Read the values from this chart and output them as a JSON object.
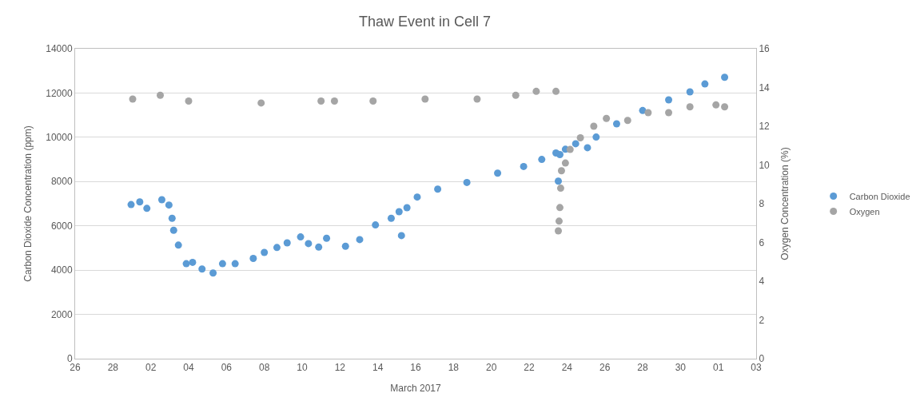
{
  "chart_data": {
    "type": "scatter",
    "title": "Thaw Event in Cell 7",
    "xlabel": "March 2017",
    "ylabel": "Carbon Dioxide Concentration (ppm)",
    "y2label": "Oxygen Concentration (%)",
    "xlim": [
      "2017-02-26",
      "2017-04-03"
    ],
    "xticks": [
      {
        "value": "2017-02-26",
        "label": "26"
      },
      {
        "value": "2017-02-28",
        "label": "28"
      },
      {
        "value": "2017-03-02",
        "label": "02"
      },
      {
        "value": "2017-03-04",
        "label": "04"
      },
      {
        "value": "2017-03-06",
        "label": "06"
      },
      {
        "value": "2017-03-08",
        "label": "08"
      },
      {
        "value": "2017-03-10",
        "label": "10"
      },
      {
        "value": "2017-03-12",
        "label": "12"
      },
      {
        "value": "2017-03-14",
        "label": "14"
      },
      {
        "value": "2017-03-16",
        "label": "16"
      },
      {
        "value": "2017-03-18",
        "label": "18"
      },
      {
        "value": "2017-03-20",
        "label": "20"
      },
      {
        "value": "2017-03-22",
        "label": "22"
      },
      {
        "value": "2017-03-24",
        "label": "24"
      },
      {
        "value": "2017-03-26",
        "label": "26"
      },
      {
        "value": "2017-03-28",
        "label": "28"
      },
      {
        "value": "2017-03-30",
        "label": "30"
      },
      {
        "value": "2017-04-01",
        "label": "01"
      },
      {
        "value": "2017-04-03",
        "label": "03"
      }
    ],
    "ylim": [
      0,
      14000
    ],
    "yticks": [
      0,
      2000,
      4000,
      6000,
      8000,
      10000,
      12000,
      14000
    ],
    "y2lim": [
      0,
      16
    ],
    "y2ticks": [
      0,
      2,
      4,
      6,
      8,
      10,
      12,
      14,
      16
    ],
    "grid": "y",
    "legend": "right",
    "marker": "circle",
    "series": [
      {
        "name": "Carbon Dioxide",
        "color": "#5b9bd5",
        "x": [
          "2017-02-28T23:00",
          "2017-03-01T10:00",
          "2017-03-01T19:00",
          "2017-03-02T14:00",
          "2017-03-02T23:00",
          "2017-03-03T03:00",
          "2017-03-03T05:00",
          "2017-03-03T11:00",
          "2017-03-03T21:00",
          "2017-03-04T05:00",
          "2017-03-04T17:00",
          "2017-03-05T07:00",
          "2017-03-05T19:00",
          "2017-03-06T11:00",
          "2017-03-07T10:00",
          "2017-03-08T00:00",
          "2017-03-08T16:00",
          "2017-03-09T05:00",
          "2017-03-09T22:00",
          "2017-03-10T08:00",
          "2017-03-10T21:00",
          "2017-03-11T07:00",
          "2017-03-12T07:00",
          "2017-03-13T01:00",
          "2017-03-13T21:00",
          "2017-03-14T17:00",
          "2017-03-15T03:00",
          "2017-03-15T06:00",
          "2017-03-15T13:00",
          "2017-03-16T02:00",
          "2017-03-17T04:00",
          "2017-03-18T17:00",
          "2017-03-20T08:00",
          "2017-03-21T17:00",
          "2017-03-22T16:00",
          "2017-03-23T10:00",
          "2017-03-23T13:00",
          "2017-03-23T15:00",
          "2017-03-23T22:00",
          "2017-03-24T11:00",
          "2017-03-25T02:00",
          "2017-03-25T13:00",
          "2017-03-26T15:00",
          "2017-03-28T00:00",
          "2017-03-29T09:00",
          "2017-03-30T12:00",
          "2017-03-31T07:00",
          "2017-04-01T08:00"
        ],
        "values": [
          6960,
          7080,
          6790,
          7180,
          6940,
          6340,
          5800,
          5130,
          4290,
          4350,
          4050,
          3870,
          4290,
          4290,
          4530,
          4800,
          5020,
          5230,
          5500,
          5200,
          5040,
          5440,
          5080,
          5380,
          6040,
          6340,
          6640,
          5560,
          6820,
          7300,
          7660,
          7960,
          8380,
          8680,
          9000,
          9290,
          8020,
          9220,
          9460,
          9710,
          9530,
          10010,
          10610,
          11210,
          11690,
          12050,
          12410,
          12710
        ]
      },
      {
        "name": "Oxygen",
        "color": "#a5a5a5",
        "axis": "y2",
        "x": [
          "2017-03-01T01:00",
          "2017-03-02T12:00",
          "2017-03-04T00:00",
          "2017-03-07T20:00",
          "2017-03-11T00:00",
          "2017-03-11T17:00",
          "2017-03-13T18:00",
          "2017-03-16T12:00",
          "2017-03-19T06:00",
          "2017-03-21T07:00",
          "2017-03-22T09:00",
          "2017-03-23T10:00",
          "2017-03-23T13:00",
          "2017-03-23T14:00",
          "2017-03-23T15:00",
          "2017-03-23T16:00",
          "2017-03-23T17:00",
          "2017-03-23T22:00",
          "2017-03-24T04:00",
          "2017-03-24T17:00",
          "2017-03-25T10:00",
          "2017-03-26T02:00",
          "2017-03-27T05:00",
          "2017-03-28T07:00",
          "2017-03-29T09:00",
          "2017-03-30T12:00",
          "2017-03-31T21:00",
          "2017-04-01T08:00"
        ],
        "values": [
          13.4,
          13.6,
          13.3,
          13.2,
          13.3,
          13.3,
          13.3,
          13.4,
          13.4,
          13.6,
          13.8,
          13.8,
          6.6,
          7.1,
          7.8,
          8.8,
          9.7,
          10.1,
          10.8,
          11.4,
          12.0,
          12.4,
          12.3,
          12.7,
          12.7,
          13.0,
          13.1,
          13.0
        ]
      }
    ]
  }
}
